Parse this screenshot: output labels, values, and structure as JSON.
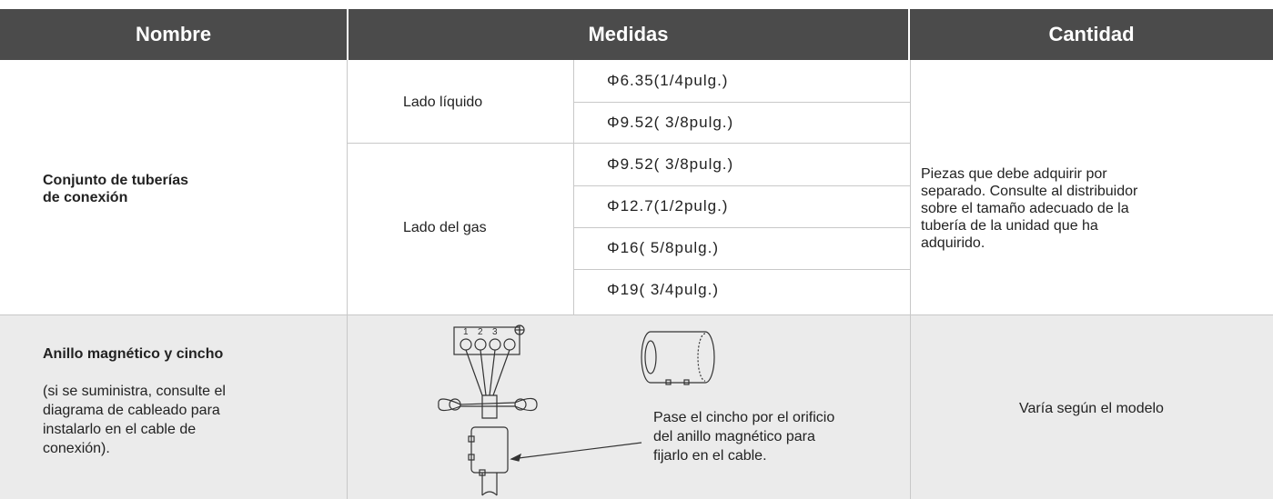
{
  "table": {
    "header": [
      "Nombre",
      "Medidas",
      "Cantidad"
    ],
    "row1": {
      "name": [
        "Conjunto de tuberías",
        "de conexión"
      ],
      "groups": [
        {
          "label": "Lado líquido",
          "sizes": [
            "Φ6.35(1/4pulg.)",
            "Φ9.52( 3/8pulg.)"
          ]
        },
        {
          "label": "Lado del gas",
          "sizes": [
            "Φ9.52( 3/8pulg.)",
            "Φ12.7(1/2pulg.)",
            "Φ16( 5/8pulg.)",
            "Φ19( 3/4pulg.)"
          ]
        }
      ],
      "quantity": [
        "Piezas que debe adquirir por",
        "separado. Consulte al distribuidor",
        "sobre el tamaño adecuado de la",
        "tubería de la unidad que ha",
        "adquirido."
      ]
    },
    "row2": {
      "name": "Anillo magnético y cincho",
      "note": [
        "(si se suministra, consulte el",
        "diagrama de cableado para",
        "instalarlo en el cable de",
        "conexión)."
      ],
      "terminals": [
        "1",
        "2",
        "3"
      ],
      "caption": [
        "Pase el cincho por el orificio",
        "del anillo magnético para",
        "fijarlo en el cable."
      ],
      "quantity": "Varía según el modelo"
    }
  }
}
